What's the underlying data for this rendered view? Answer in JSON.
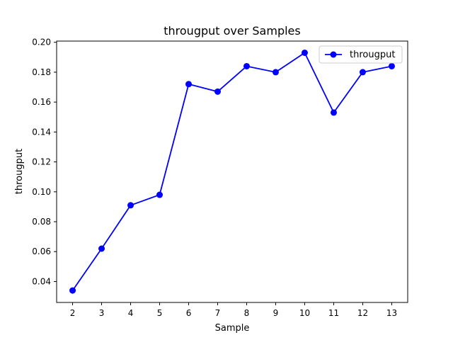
{
  "chart_data": {
    "type": "line",
    "title": "througput over Samples",
    "xlabel": "Sample",
    "ylabel": "througput",
    "x": [
      2,
      3,
      4,
      5,
      6,
      7,
      8,
      9,
      10,
      11,
      12,
      13
    ],
    "series": [
      {
        "name": "througput",
        "color": "#0000ff",
        "marker": "circle",
        "values": [
          0.034,
          0.062,
          0.091,
          0.098,
          0.172,
          0.167,
          0.184,
          0.18,
          0.193,
          0.153,
          0.18,
          0.184
        ]
      }
    ],
    "xlim": [
      1.45,
      13.55
    ],
    "ylim": [
      0.026,
      0.2008
    ],
    "x_ticks": [
      "2",
      "3",
      "4",
      "5",
      "6",
      "7",
      "8",
      "9",
      "10",
      "11",
      "12",
      "13"
    ],
    "y_ticks": [
      "0.04",
      "0.06",
      "0.08",
      "0.10",
      "0.12",
      "0.14",
      "0.16",
      "0.18",
      "0.20"
    ],
    "grid": false,
    "legend_position": "top-right"
  }
}
